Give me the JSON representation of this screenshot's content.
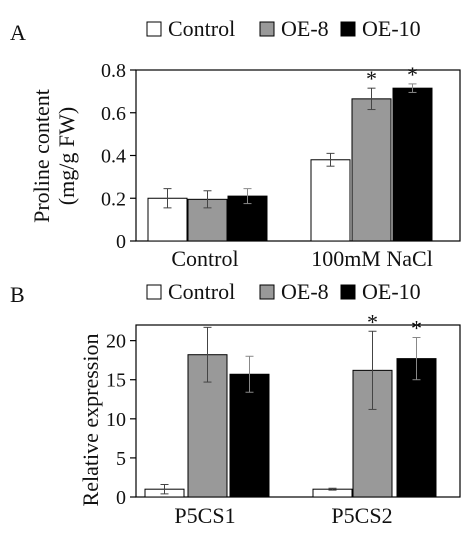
{
  "chart_data": [
    {
      "panel_label": "A",
      "type": "bar",
      "categories": [
        "Control",
        "100mM NaCl"
      ],
      "series": [
        {
          "name": "Control",
          "color": "#ffffff",
          "values": [
            0.2,
            0.38
          ],
          "errors": [
            0.045,
            0.03
          ],
          "significant": [
            false,
            false
          ]
        },
        {
          "name": "OE-8",
          "color": "#999999",
          "values": [
            0.195,
            0.665
          ],
          "errors": [
            0.04,
            0.05
          ],
          "significant": [
            false,
            true
          ]
        },
        {
          "name": "OE-10",
          "color": "#000000",
          "values": [
            0.21,
            0.715
          ],
          "errors": [
            0.035,
            0.02
          ],
          "significant": [
            false,
            true
          ]
        }
      ],
      "ylabel": "Proline content (mg/g FW)",
      "ylabel_lines": [
        "Proline content",
        "(mg/g FW)"
      ],
      "xlabel": "",
      "ylim": [
        0,
        0.8
      ],
      "yticks": [
        0,
        0.2,
        0.4,
        0.6,
        0.8
      ],
      "ytick_labels": [
        "0",
        "0.2",
        "0.4",
        "0.6",
        "0.8"
      ],
      "significance_marker": "*",
      "legend_position": "top"
    },
    {
      "panel_label": "B",
      "type": "bar",
      "categories": [
        "P5CS1",
        "P5CS2"
      ],
      "series": [
        {
          "name": "Control",
          "color": "#ffffff",
          "values": [
            1.0,
            1.0
          ],
          "errors": [
            0.6,
            0.12
          ],
          "significant": [
            false,
            false
          ]
        },
        {
          "name": "OE-8",
          "color": "#999999",
          "values": [
            18.2,
            16.2
          ],
          "errors": [
            3.5,
            5.0
          ],
          "significant": [
            false,
            true
          ]
        },
        {
          "name": "OE-10",
          "color": "#000000",
          "values": [
            15.7,
            17.7
          ],
          "errors": [
            2.3,
            2.7
          ],
          "significant": [
            false,
            true
          ]
        }
      ],
      "ylabel": "Relative expression",
      "ylabel_lines": [
        "Relative expression"
      ],
      "xlabel": "",
      "ylim": [
        0,
        22
      ],
      "yticks": [
        0,
        5,
        10,
        15,
        20
      ],
      "ytick_labels": [
        "0",
        "5",
        "10",
        "15",
        "20"
      ],
      "significance_marker": "*",
      "legend_position": "top"
    }
  ]
}
